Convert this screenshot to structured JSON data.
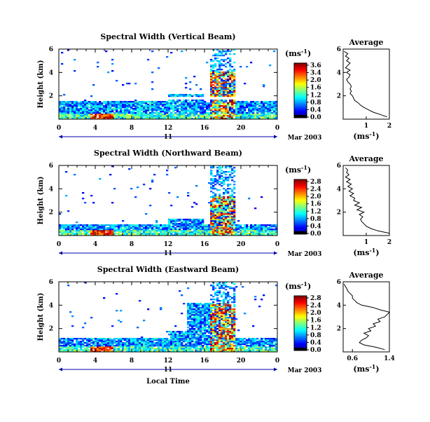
{
  "figure": {
    "ylabel": "Height (km)",
    "x_ticks": [
      "0",
      "4",
      "8",
      "12",
      "16",
      "20",
      "0"
    ],
    "day_label": "11",
    "date_label": "Mar 2003",
    "xlabel": "Local Time",
    "colorbar_unit": "(ms",
    "colorbar_unit_exp": "-1",
    "colorbar_unit_close": ")",
    "avg_title": "Average",
    "avg_xunit": "(ms",
    "avg_xunit_exp": "-1",
    "avg_xunit_close": ")",
    "colors": {
      "axis": "#000000",
      "time_arrow": "#0000aa"
    }
  },
  "chart_data": [
    {
      "type": "heatmap",
      "title": "Spectral Width (Vertical Beam)",
      "xlim": [
        0,
        24
      ],
      "ylim": [
        0,
        6
      ],
      "y_ticks": [
        "6",
        "4",
        "2"
      ],
      "colorbar": {
        "range": [
          0,
          3.8
        ],
        "ticks": [
          "3.6",
          "3.4",
          "2.0",
          "1.6",
          "1.2",
          "0.8",
          "0.4",
          "0.0"
        ]
      },
      "avg_profile": {
        "xlim": [
          0,
          2
        ],
        "x_ticks": [
          "1",
          "2"
        ],
        "y_ticks": [
          "6",
          "4",
          "2"
        ],
        "height": [
          0.2,
          0.4,
          0.6,
          0.8,
          1.0,
          1.2,
          1.4,
          1.6,
          1.8,
          2.0,
          2.2,
          2.4,
          2.6,
          2.8,
          3.0,
          3.2,
          3.4,
          3.6,
          3.8,
          4.0,
          4.2,
          4.4,
          4.6,
          4.8,
          5.0,
          5.2,
          5.4,
          5.6,
          5.8
        ],
        "value": [
          1.9,
          1.6,
          1.3,
          1.1,
          0.9,
          0.75,
          0.65,
          0.5,
          0.45,
          0.4,
          0.3,
          0.35,
          0.3,
          0.35,
          0.3,
          0.2,
          0.15,
          0.25,
          0.3,
          0.15,
          0.3,
          0.1,
          0.2,
          0.3,
          0.15,
          0.25,
          0.1,
          0.2,
          0.05
        ]
      }
    },
    {
      "type": "heatmap",
      "title": "Spectral Width (Northward Beam)",
      "xlim": [
        0,
        24
      ],
      "ylim": [
        0,
        6
      ],
      "y_ticks": [
        "6",
        "4",
        "2"
      ],
      "colorbar": {
        "range": [
          0,
          2.9
        ],
        "ticks": [
          "2.8",
          "2.4",
          "2.0",
          "1.6",
          "1.2",
          "0.8",
          "0.4",
          "0.0"
        ]
      },
      "avg_profile": {
        "xlim": [
          0,
          2
        ],
        "x_ticks": [
          "1",
          "2"
        ],
        "y_ticks": [
          "6",
          "4",
          "2"
        ],
        "height": [
          0.2,
          0.4,
          0.6,
          0.8,
          1.0,
          1.2,
          1.4,
          1.6,
          1.8,
          2.0,
          2.2,
          2.4,
          2.6,
          2.8,
          3.0,
          3.2,
          3.4,
          3.6,
          3.8,
          4.0,
          4.2,
          4.4,
          4.6,
          4.8,
          5.0,
          5.2,
          5.4,
          5.6,
          5.8
        ],
        "value": [
          2.0,
          1.5,
          1.2,
          1.0,
          0.9,
          0.8,
          0.75,
          0.85,
          0.7,
          0.9,
          0.6,
          0.8,
          0.5,
          0.7,
          0.45,
          0.5,
          0.3,
          0.45,
          0.25,
          0.4,
          0.2,
          0.35,
          0.15,
          0.3,
          0.1,
          0.25,
          0.15,
          0.2,
          0.1
        ]
      }
    },
    {
      "type": "heatmap",
      "title": "Spectral Width (Eastward Beam)",
      "xlim": [
        0,
        24
      ],
      "ylim": [
        0,
        6
      ],
      "y_ticks": [
        "6",
        "4",
        "2"
      ],
      "colorbar": {
        "range": [
          0,
          2.9
        ],
        "ticks": [
          "2.8",
          "2.4",
          "2.0",
          "1.6",
          "1.2",
          "0.8",
          "0.4",
          "0.0"
        ]
      },
      "avg_profile": {
        "xlim": [
          0.4,
          1.4
        ],
        "x_ticks": [
          "0.6",
          "1.4"
        ],
        "y_ticks": [
          "6",
          "4",
          "2"
        ],
        "height": [
          0.2,
          0.4,
          0.6,
          0.8,
          1.0,
          1.2,
          1.4,
          1.6,
          1.8,
          2.0,
          2.2,
          2.4,
          2.6,
          2.8,
          3.0,
          3.2,
          3.4,
          3.6,
          3.8,
          4.0,
          4.2,
          4.4,
          4.6,
          4.8,
          5.0,
          5.2,
          5.4,
          5.6,
          5.8
        ],
        "value": [
          1.3,
          1.1,
          0.85,
          0.75,
          0.8,
          0.9,
          0.95,
          0.85,
          1.0,
          0.95,
          1.1,
          1.05,
          1.2,
          1.15,
          1.3,
          1.35,
          1.4,
          1.2,
          1.05,
          0.8,
          0.7,
          0.65,
          0.6,
          0.6,
          0.55,
          0.5,
          0.48,
          0.45,
          0.42
        ]
      }
    }
  ]
}
